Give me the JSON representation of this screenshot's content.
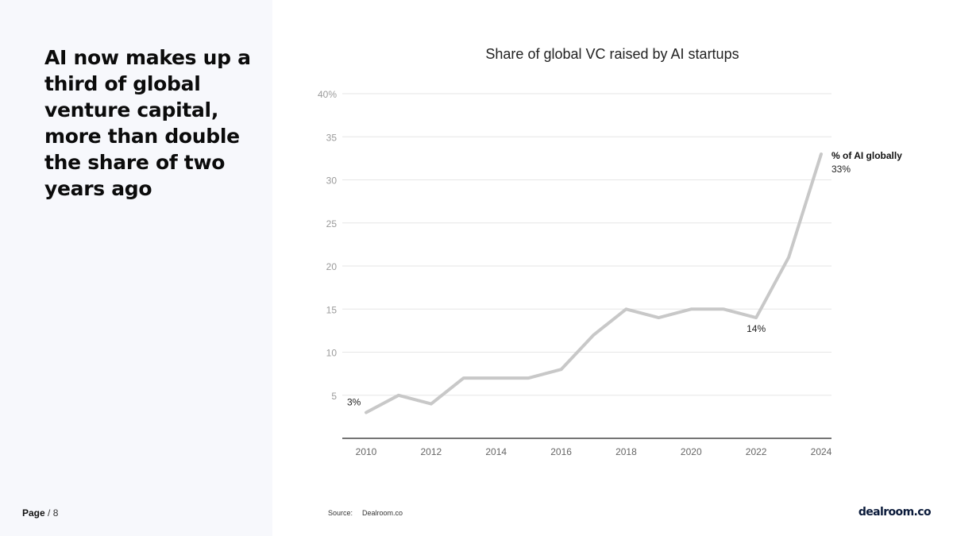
{
  "headline": "AI now makes up a third of global venture capital, more than double the share of two years ago",
  "page": {
    "label": "Page",
    "number": "/ 8"
  },
  "source": {
    "label": "Source:",
    "value": "Dealroom.co"
  },
  "logo_text": "dealroom.co",
  "colors": {
    "line": "#c8c8c8",
    "grid": "#e6e6e6",
    "axis": "#222222",
    "left_panel": "#f7f8fc"
  },
  "chart_data": {
    "type": "line",
    "title": "Share of global VC raised by AI startups",
    "xlabel": "",
    "ylabel": "",
    "x": [
      2010,
      2011,
      2012,
      2013,
      2014,
      2015,
      2016,
      2017,
      2018,
      2019,
      2020,
      2021,
      2022,
      2023,
      2024
    ],
    "series": [
      {
        "name": "% of AI globally",
        "values": [
          3,
          5,
          4,
          7,
          7,
          7,
          8,
          12,
          15,
          14,
          15,
          15,
          14,
          21,
          33
        ]
      }
    ],
    "xticks": [
      "2010",
      "2012",
      "2014",
      "2016",
      "2018",
      "2020",
      "2022",
      "2024"
    ],
    "yticks": [
      "5",
      "10",
      "15",
      "20",
      "25",
      "30",
      "35",
      "40%"
    ],
    "ylim": [
      0,
      40
    ],
    "xlim": [
      2010,
      2024
    ],
    "annotations": [
      {
        "x": 2010,
        "y": 3,
        "text": "3%"
      },
      {
        "x": 2022,
        "y": 14,
        "text": "14%"
      }
    ],
    "end_label": {
      "name": "% of AI globally",
      "value": "33%"
    }
  }
}
